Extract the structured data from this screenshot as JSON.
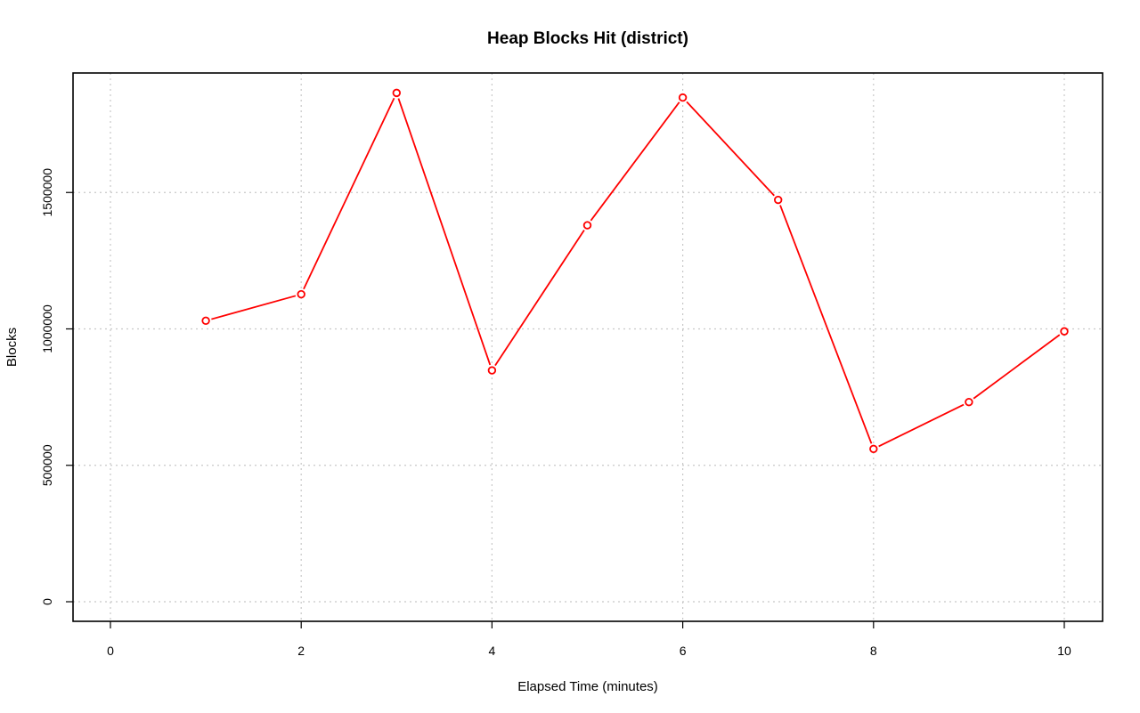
{
  "chart_data": {
    "type": "line",
    "title": "Heap Blocks Hit (district)",
    "xlabel": "Elapsed Time (minutes)",
    "ylabel": "Blocks",
    "xlim": [
      0,
      10
    ],
    "ylim": [
      0,
      1850000
    ],
    "x_ticks": [
      0,
      2,
      4,
      6,
      8,
      10
    ],
    "y_ticks": [
      0,
      500000,
      1000000,
      1500000
    ],
    "grid": true,
    "color": "#ff0000",
    "series": [
      {
        "x": [
          1,
          2,
          3,
          4,
          5,
          6,
          7,
          8,
          9,
          10
        ],
        "values": [
          1030000,
          1127000,
          1865000,
          848000,
          1380000,
          1848000,
          1473000,
          560000,
          732000,
          991000
        ]
      }
    ]
  }
}
